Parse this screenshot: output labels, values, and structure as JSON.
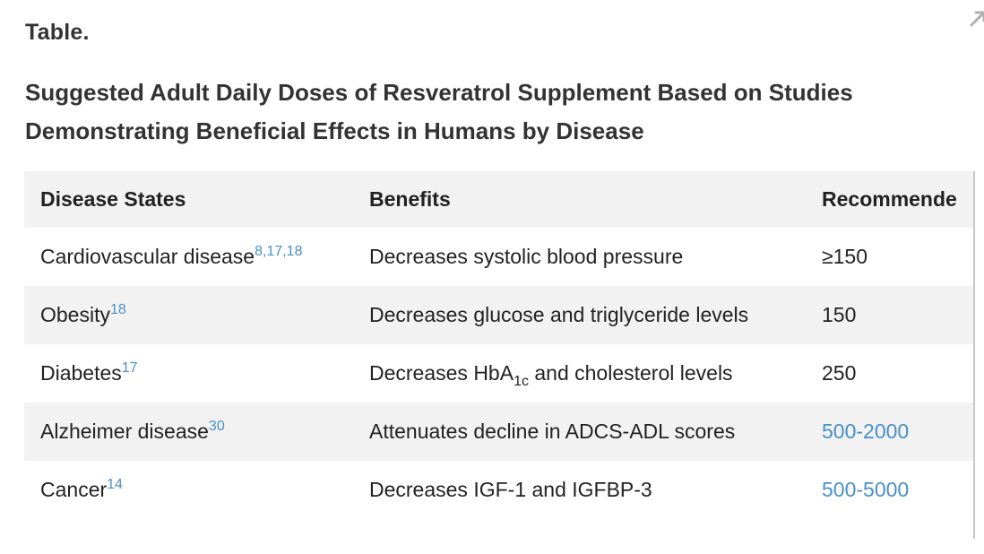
{
  "label": "Table.",
  "caption_line1": "Suggested Adult Daily Doses of Resveratrol Supplement Based on Studies",
  "caption_line2": "Demonstrating Beneficial Effects in Humans by Disease",
  "headers": {
    "disease": "Disease States",
    "benefits": "Benefits",
    "recommended": "Recommende"
  },
  "rows": [
    {
      "disease": "Cardiovascular disease",
      "refs": "8,17,18",
      "benefit": "Decreases systolic blood pressure",
      "dose": "≥150"
    },
    {
      "disease": "Obesity",
      "refs": "18",
      "benefit": "Decreases glucose and triglyceride levels",
      "dose": "150"
    },
    {
      "disease": "Diabetes",
      "refs": "17",
      "benefit_pre": "Decreases HbA",
      "benefit_sub": "1c",
      "benefit_post": " and cholesterol levels",
      "dose": "250"
    },
    {
      "disease": "Alzheimer disease",
      "refs": "30",
      "benefit": "Attenuates decline in ADCS-ADL scores",
      "dose": "500-2000"
    },
    {
      "disease": "Cancer",
      "refs": "14",
      "benefit": "Decreases IGF-1 and IGFBP-3",
      "dose": "500-5000"
    }
  ],
  "colors": {
    "link": "#4a90c4",
    "header_bg": "#f2f2f2",
    "text": "#222222"
  },
  "icons": {
    "expand": "expand-arrow-icon"
  }
}
